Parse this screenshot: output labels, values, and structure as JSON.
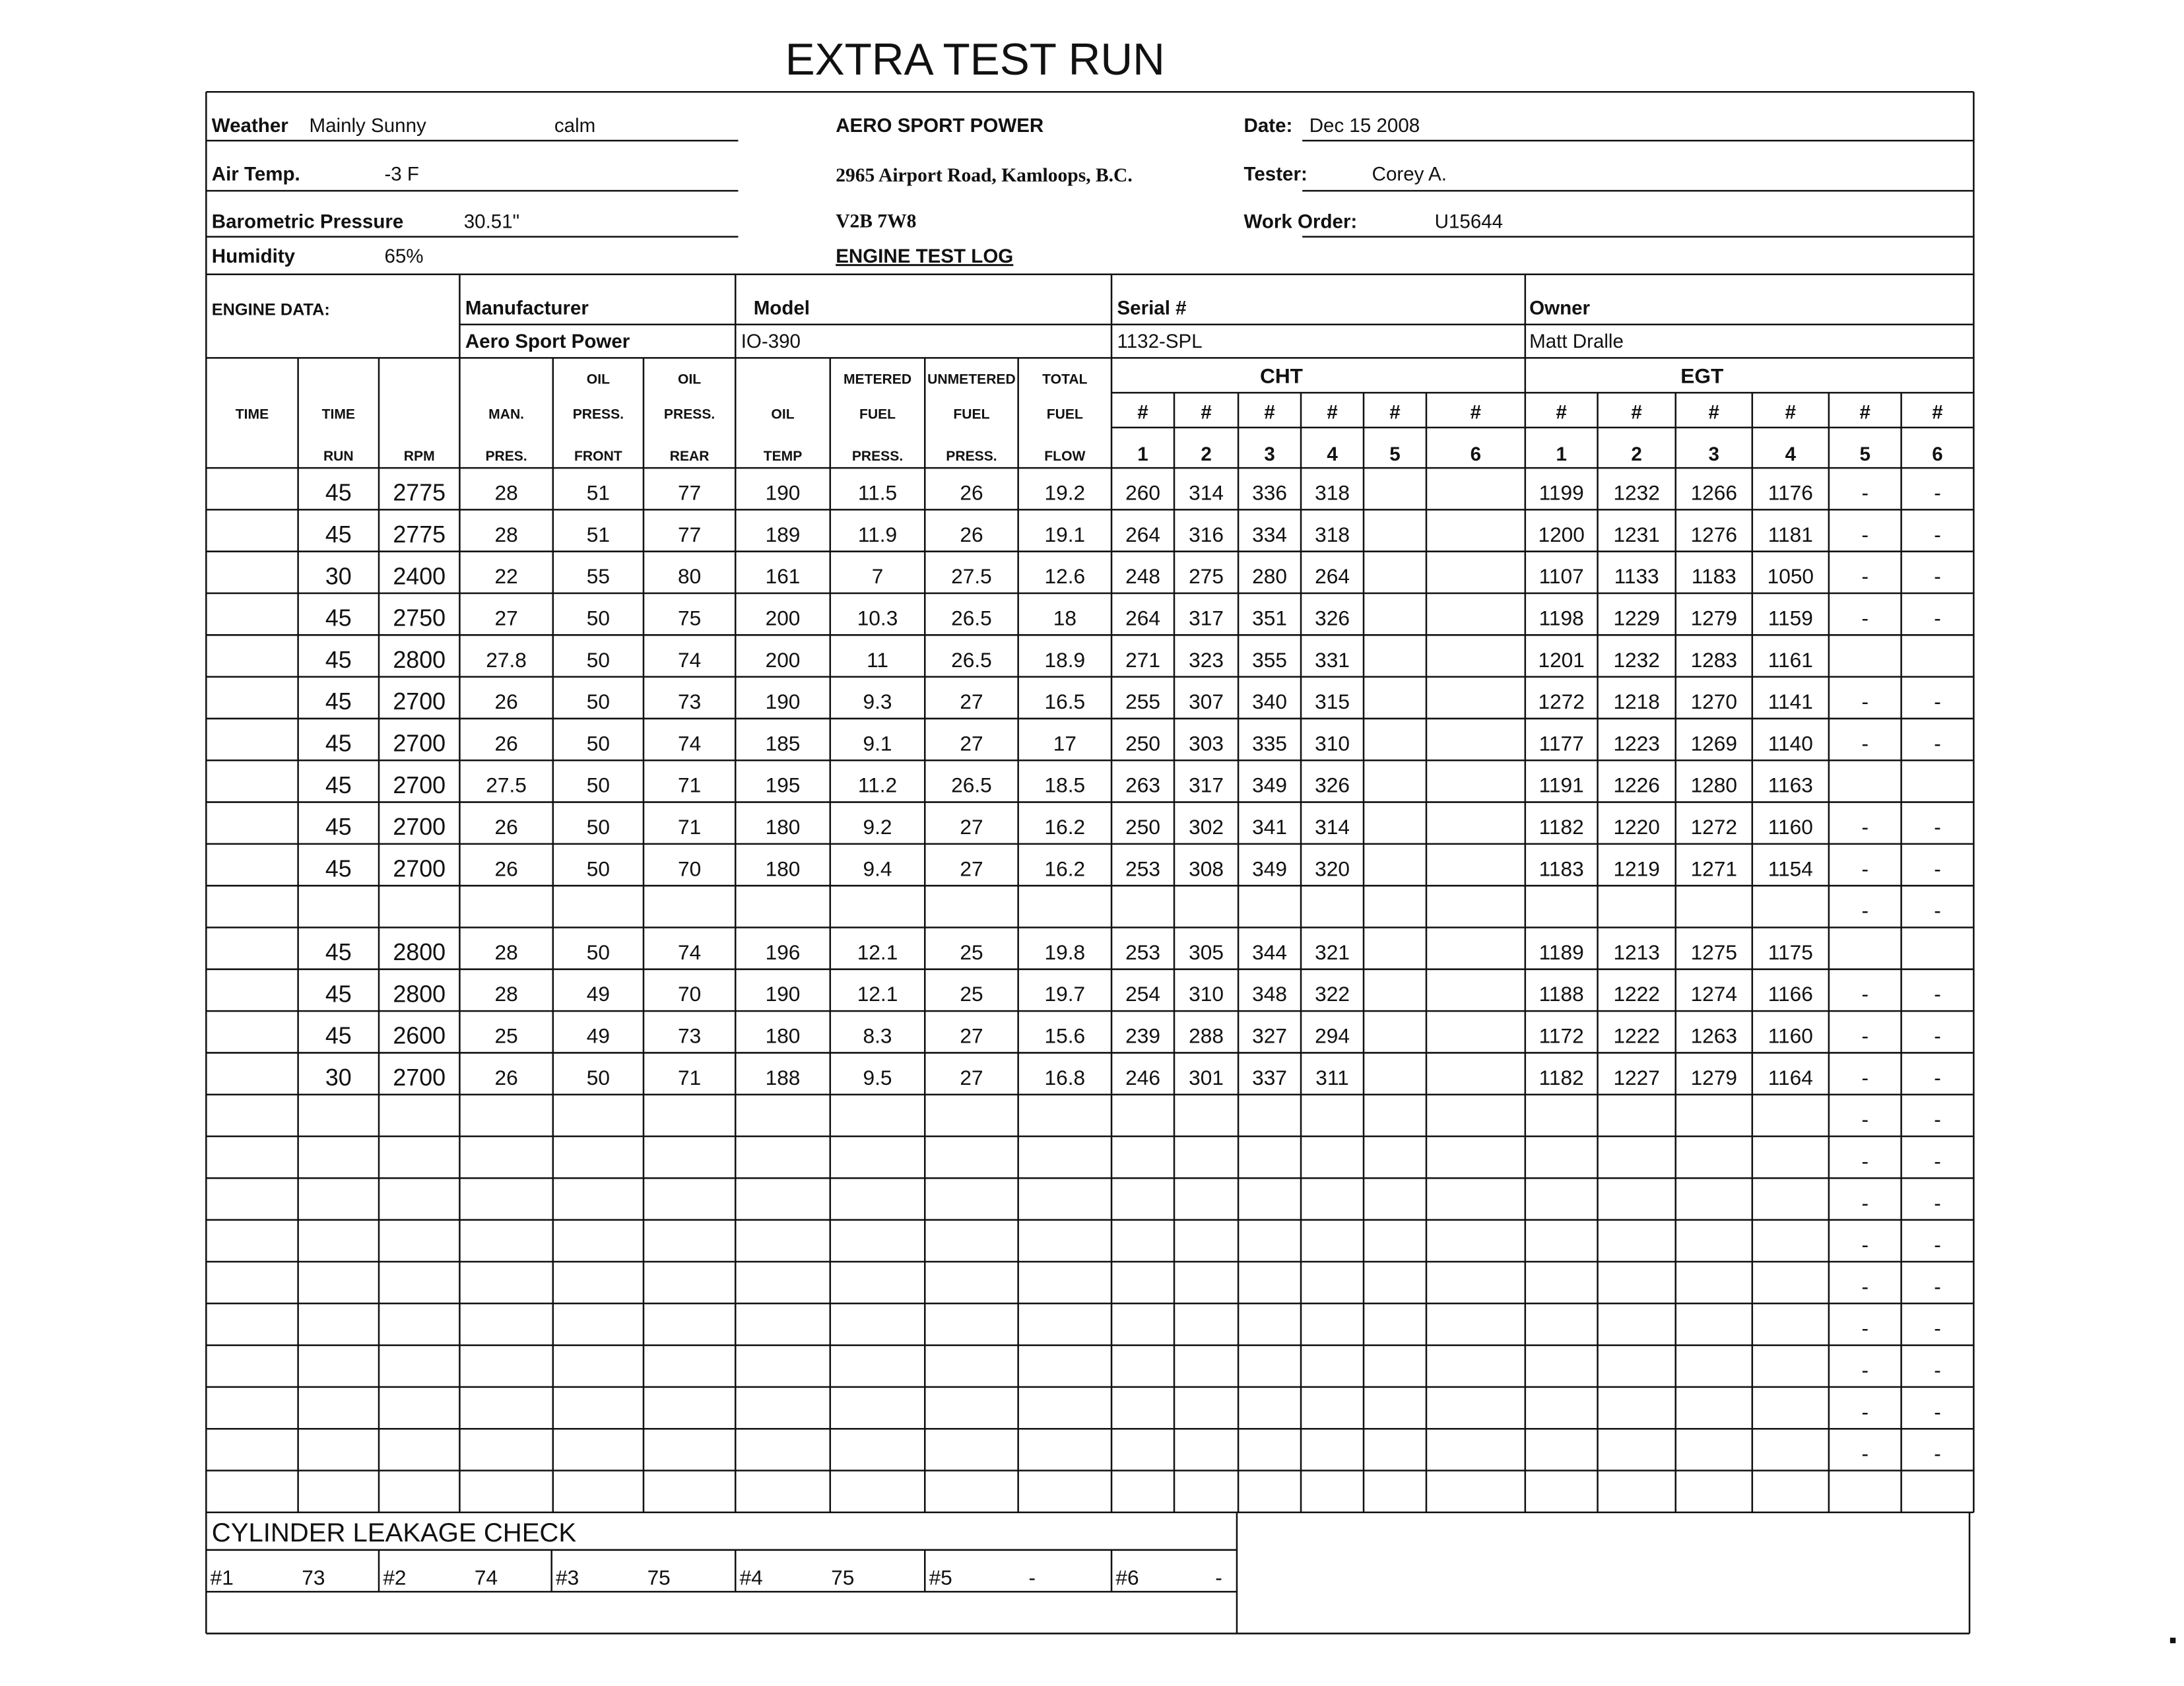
{
  "header": {
    "title": "EXTRA TEST RUN",
    "weather_label": "Weather",
    "weather": "Mainly Sunny",
    "wind": "calm",
    "air_temp_label": "Air Temp.",
    "air_temp": "-3 F",
    "baro_label": "Barometric Pressure",
    "baro": "30.51\"",
    "humidity_label": "Humidity",
    "humidity": "65%",
    "company": "AERO SPORT POWER",
    "address": "2965 Airport Road, Kamloops, B.C.",
    "postal": "V2B 7W8",
    "log_title": "ENGINE TEST LOG",
    "date_label": "Date:",
    "date": "Dec 15 2008",
    "tester_label": "Tester:",
    "tester": "Corey A.",
    "work_order_label": "Work Order:",
    "work_order": "U15644"
  },
  "engine": {
    "label": "ENGINE DATA:",
    "manufacturer_label": "Manufacturer",
    "manufacturer": "Aero Sport Power",
    "model_label": "Model",
    "model": "IO-390",
    "serial_label": "Serial #",
    "serial": "1132-SPL",
    "owner_label": "Owner",
    "owner": "Matt Dralle"
  },
  "table": {
    "groups": [
      "CHT",
      "EGT"
    ],
    "columns": [
      [
        "TIME"
      ],
      [
        "TIME",
        "RUN"
      ],
      [
        "RPM"
      ],
      [
        "MAN.",
        "PRES."
      ],
      [
        "OIL",
        "PRESS.",
        "FRONT"
      ],
      [
        "OIL",
        "PRESS.",
        "REAR"
      ],
      [
        "OIL",
        "TEMP"
      ],
      [
        "METERED",
        "FUEL",
        "PRESS."
      ],
      [
        "UNMETERED",
        "FUEL",
        "PRESS."
      ],
      [
        "TOTAL",
        "FUEL",
        "FLOW"
      ],
      [
        "#",
        "1"
      ],
      [
        "#",
        "2"
      ],
      [
        "#",
        "3"
      ],
      [
        "#",
        "4"
      ],
      [
        "#",
        "5"
      ],
      [
        "#",
        "6"
      ],
      [
        "#",
        "1"
      ],
      [
        "#",
        "2"
      ],
      [
        "#",
        "3"
      ],
      [
        "#",
        "4"
      ],
      [
        "#",
        "5"
      ],
      [
        "#",
        "6"
      ]
    ],
    "rows": [
      [
        null,
        45,
        2775,
        28,
        51,
        77,
        190,
        11.5,
        26,
        19.2,
        260,
        314,
        336,
        318,
        null,
        null,
        1199,
        1232,
        1266,
        1176,
        "-",
        "-"
      ],
      [
        null,
        45,
        2775,
        28,
        51,
        77,
        189,
        11.9,
        26,
        19.1,
        264,
        316,
        334,
        318,
        null,
        null,
        1200,
        1231,
        1276,
        1181,
        "-",
        "-"
      ],
      [
        null,
        30,
        2400,
        22,
        55,
        80,
        161,
        7,
        27.5,
        12.6,
        248,
        275,
        280,
        264,
        null,
        null,
        1107,
        1133,
        1183,
        1050,
        "-",
        "-"
      ],
      [
        null,
        45,
        2750,
        27,
        50,
        75,
        200,
        10.3,
        26.5,
        18,
        264,
        317,
        351,
        326,
        null,
        null,
        1198,
        1229,
        1279,
        1159,
        "-",
        "-"
      ],
      [
        null,
        45,
        2800,
        27.8,
        50,
        74,
        200,
        11,
        26.5,
        18.9,
        271,
        323,
        355,
        331,
        null,
        null,
        1201,
        1232,
        1283,
        1161,
        null,
        null
      ],
      [
        null,
        45,
        2700,
        26,
        50,
        73,
        190,
        9.3,
        27,
        16.5,
        255,
        307,
        340,
        315,
        null,
        null,
        1272,
        1218,
        1270,
        1141,
        "-",
        "-"
      ],
      [
        null,
        45,
        2700,
        26,
        50,
        74,
        185,
        9.1,
        27,
        17,
        250,
        303,
        335,
        310,
        null,
        null,
        1177,
        1223,
        1269,
        1140,
        "-",
        "-"
      ],
      [
        null,
        45,
        2700,
        27.5,
        50,
        71,
        195,
        11.2,
        26.5,
        18.5,
        263,
        317,
        349,
        326,
        null,
        null,
        1191,
        1226,
        1280,
        1163,
        null,
        null
      ],
      [
        null,
        45,
        2700,
        26,
        50,
        71,
        180,
        9.2,
        27,
        16.2,
        250,
        302,
        341,
        314,
        null,
        null,
        1182,
        1220,
        1272,
        1160,
        "-",
        "-"
      ],
      [
        null,
        45,
        2700,
        26,
        50,
        70,
        180,
        9.4,
        27,
        16.2,
        253,
        308,
        349,
        320,
        null,
        null,
        1183,
        1219,
        1271,
        1154,
        "-",
        "-"
      ],
      [
        null,
        null,
        null,
        null,
        null,
        null,
        null,
        null,
        null,
        null,
        null,
        null,
        null,
        null,
        null,
        null,
        null,
        null,
        null,
        null,
        "-",
        "-"
      ],
      [
        null,
        45,
        2800,
        28,
        50,
        74,
        196,
        12.1,
        25,
        19.8,
        253,
        305,
        344,
        321,
        null,
        null,
        1189,
        1213,
        1275,
        1175,
        null,
        null
      ],
      [
        null,
        45,
        2800,
        28,
        49,
        70,
        190,
        12.1,
        25,
        19.7,
        254,
        310,
        348,
        322,
        null,
        null,
        1188,
        1222,
        1274,
        1166,
        "-",
        "-"
      ],
      [
        null,
        45,
        2600,
        25,
        49,
        73,
        180,
        8.3,
        27,
        15.6,
        239,
        288,
        327,
        294,
        null,
        null,
        1172,
        1222,
        1263,
        1160,
        "-",
        "-"
      ],
      [
        null,
        30,
        2700,
        26,
        50,
        71,
        188,
        9.5,
        27,
        16.8,
        246,
        301,
        337,
        311,
        null,
        null,
        1182,
        1227,
        1279,
        1164,
        "-",
        "-"
      ],
      [
        null,
        null,
        null,
        null,
        null,
        null,
        null,
        null,
        null,
        null,
        null,
        null,
        null,
        null,
        null,
        null,
        null,
        null,
        null,
        null,
        "-",
        "-"
      ],
      [
        null,
        null,
        null,
        null,
        null,
        null,
        null,
        null,
        null,
        null,
        null,
        null,
        null,
        null,
        null,
        null,
        null,
        null,
        null,
        null,
        "-",
        "-"
      ],
      [
        null,
        null,
        null,
        null,
        null,
        null,
        null,
        null,
        null,
        null,
        null,
        null,
        null,
        null,
        null,
        null,
        null,
        null,
        null,
        null,
        "-",
        "-"
      ],
      [
        null,
        null,
        null,
        null,
        null,
        null,
        null,
        null,
        null,
        null,
        null,
        null,
        null,
        null,
        null,
        null,
        null,
        null,
        null,
        null,
        "-",
        "-"
      ],
      [
        null,
        null,
        null,
        null,
        null,
        null,
        null,
        null,
        null,
        null,
        null,
        null,
        null,
        null,
        null,
        null,
        null,
        null,
        null,
        null,
        "-",
        "-"
      ],
      [
        null,
        null,
        null,
        null,
        null,
        null,
        null,
        null,
        null,
        null,
        null,
        null,
        null,
        null,
        null,
        null,
        null,
        null,
        null,
        null,
        "-",
        "-"
      ],
      [
        null,
        null,
        null,
        null,
        null,
        null,
        null,
        null,
        null,
        null,
        null,
        null,
        null,
        null,
        null,
        null,
        null,
        null,
        null,
        null,
        "-",
        "-"
      ],
      [
        null,
        null,
        null,
        null,
        null,
        null,
        null,
        null,
        null,
        null,
        null,
        null,
        null,
        null,
        null,
        null,
        null,
        null,
        null,
        null,
        "-",
        "-"
      ],
      [
        null,
        null,
        null,
        null,
        null,
        null,
        null,
        null,
        null,
        null,
        null,
        null,
        null,
        null,
        null,
        null,
        null,
        null,
        null,
        null,
        "-",
        "-"
      ],
      [
        null,
        null,
        null,
        null,
        null,
        null,
        null,
        null,
        null,
        null,
        null,
        null,
        null,
        null,
        null,
        null,
        null,
        null,
        null,
        null,
        null,
        null
      ]
    ]
  },
  "leakage": {
    "title": "CYLINDER LEAKAGE CHECK",
    "cells": [
      {
        "label": "#1",
        "value": 73
      },
      {
        "label": "#2",
        "value": 74
      },
      {
        "label": "#3",
        "value": 75
      },
      {
        "label": "#4",
        "value": 75
      },
      {
        "label": "#5",
        "value": "-"
      },
      {
        "label": "#6",
        "value": "-"
      }
    ]
  }
}
